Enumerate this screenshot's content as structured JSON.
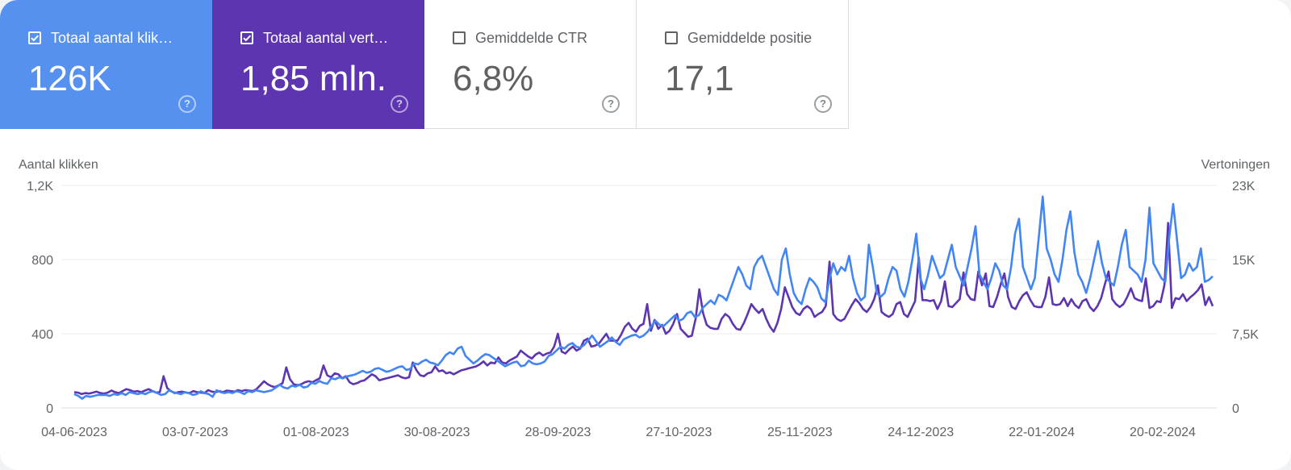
{
  "metrics": [
    {
      "label": "Totaal aantal klik…",
      "value": "126K",
      "checked": true,
      "color": "#5691f0"
    },
    {
      "label": "Totaal aantal vert…",
      "value": "1,85 mln.",
      "checked": true,
      "color": "#5e35b1"
    },
    {
      "label": "Gemiddelde CTR",
      "value": "6,8%",
      "checked": false
    },
    {
      "label": "Gemiddelde positie",
      "value": "17,1",
      "checked": false
    }
  ],
  "help_glyph": "?",
  "chart_data": {
    "type": "line",
    "ylabel_left": "Aantal klikken",
    "ylabel_right": "Vertoningen",
    "yticks_left": [
      "0",
      "400",
      "800",
      "1,2K"
    ],
    "yticks_right": [
      "0",
      "7,5K",
      "15K",
      "23K"
    ],
    "ylim_left": [
      0,
      1200
    ],
    "ylim_right": [
      0,
      22500
    ],
    "xticks": [
      "04-06-2023",
      "03-07-2023",
      "01-08-2023",
      "30-08-2023",
      "28-09-2023",
      "27-10-2023",
      "25-11-2023",
      "24-12-2023",
      "22-01-2024",
      "20-02-2024"
    ],
    "x_start": "04-06-2023",
    "x_end": "03-03-2024",
    "grid": true,
    "series": [
      {
        "axis": "left",
        "color": "#4285f4",
        "values": [
          75,
          65,
          50,
          65,
          60,
          65,
          70,
          70,
          70,
          65,
          75,
          70,
          80,
          70,
          85,
          80,
          75,
          80,
          75,
          85,
          90,
          80,
          70,
          75,
          95,
          85,
          80,
          75,
          85,
          80,
          70,
          75,
          90,
          80,
          75,
          60,
          95,
          85,
          80,
          85,
          80,
          90,
          85,
          75,
          90,
          85,
          95,
          90,
          85,
          90,
          95,
          110,
          125,
          110,
          105,
          120,
          115,
          125,
          110,
          115,
          135,
          130,
          145,
          135,
          130,
          160,
          155,
          165,
          160,
          170,
          175,
          180,
          190,
          200,
          190,
          195,
          210,
          215,
          205,
          195,
          200,
          210,
          220,
          225,
          205,
          210,
          240,
          235,
          250,
          260,
          245,
          240,
          230,
          255,
          285,
          300,
          290,
          320,
          330,
          280,
          260,
          240,
          255,
          275,
          290,
          285,
          270,
          255,
          240,
          225,
          235,
          245,
          250,
          225,
          230,
          255,
          240,
          235,
          240,
          250,
          280,
          290,
          310,
          330,
          320,
          340,
          350,
          330,
          325,
          340,
          365,
          390,
          360,
          330,
          345,
          360,
          380,
          355,
          340,
          370,
          380,
          390,
          395,
          380,
          390,
          410,
          440,
          470,
          450,
          440,
          460,
          480,
          500,
          470,
          480,
          510,
          520,
          490,
          500,
          540,
          560,
          580,
          560,
          610,
          600,
          580,
          640,
          700,
          760,
          720,
          660,
          640,
          760,
          800,
          820,
          760,
          700,
          640,
          610,
          800,
          860,
          720,
          620,
          580,
          560,
          640,
          700,
          680,
          650,
          590,
          570,
          690,
          780,
          720,
          760,
          740,
          820,
          700,
          620,
          580,
          600,
          880,
          760,
          620,
          600,
          620,
          700,
          760,
          740,
          640,
          600,
          680,
          800,
          940,
          700,
          640,
          720,
          820,
          760,
          700,
          720,
          800,
          880,
          760,
          710,
          660,
          760,
          860,
          980,
          720,
          680,
          640,
          700,
          780,
          740,
          660,
          640,
          760,
          940,
          1020,
          760,
          700,
          640,
          700,
          920,
          1140,
          860,
          800,
          720,
          680,
          800,
          960,
          1060,
          840,
          720,
          680,
          620,
          700,
          800,
          900,
          780,
          700,
          680,
          660,
          760,
          880,
          960,
          760,
          740,
          720,
          680,
          800,
          1080,
          780,
          740,
          700,
          680,
          920,
          1100,
          900,
          700,
          720,
          780,
          740,
          760,
          860,
          680,
          690,
          710
        ]
      },
      {
        "axis": "right",
        "color": "#5e35b1",
        "values": [
          1600,
          1550,
          1400,
          1500,
          1450,
          1550,
          1650,
          1500,
          1450,
          1550,
          1750,
          1600,
          1500,
          1700,
          1900,
          1800,
          1650,
          1700,
          1600,
          1750,
          1900,
          1700,
          1550,
          1600,
          3200,
          2000,
          1700,
          1500,
          1600,
          1650,
          1550,
          1500,
          1700,
          1600,
          1550,
          1500,
          1800,
          1650,
          1600,
          1700,
          1600,
          1750,
          1700,
          1650,
          1800,
          1700,
          1800,
          1750,
          1700,
          1900,
          2300,
          2700,
          2400,
          2200,
          2100,
          2300,
          2500,
          4100,
          2900,
          2400,
          2300,
          2400,
          2600,
          2700,
          2600,
          2800,
          3000,
          4300,
          3300,
          3100,
          3500,
          3400,
          3000,
          3200,
          2600,
          2400,
          2500,
          2700,
          2800,
          3100,
          3400,
          3200,
          2800,
          2900,
          3000,
          3100,
          3200,
          3300,
          3100,
          3000,
          3100,
          4600,
          3800,
          3300,
          3200,
          3500,
          3600,
          4200,
          3700,
          3800,
          3500,
          3600,
          3400,
          3600,
          3800,
          3900,
          4000,
          4100,
          4200,
          4400,
          4700,
          4300,
          4600,
          4500,
          5100,
          4600,
          4500,
          4800,
          5000,
          5200,
          5800,
          5500,
          5200,
          5000,
          5400,
          5600,
          5300,
          5500,
          5600,
          6200,
          7500,
          5700,
          5500,
          5900,
          6200,
          5800,
          6000,
          6800,
          7000,
          6200,
          6300,
          6500,
          7000,
          7500,
          6800,
          6800,
          6800,
          7400,
          8200,
          8600,
          8000,
          7700,
          8300,
          8500,
          10500,
          7800,
          8900,
          8000,
          8400,
          7500,
          7800,
          8500,
          9500,
          8000,
          7600,
          7200,
          7300,
          9000,
          12000,
          9600,
          8400,
          8100,
          8000,
          8000,
          9000,
          9500,
          9200,
          8500,
          8000,
          7900,
          8600,
          9500,
          10500,
          10000,
          9600,
          10000,
          9000,
          8200,
          7700,
          8600,
          10000,
          12200,
          11200,
          10200,
          9600,
          9400,
          10000,
          10300,
          10000,
          9200,
          9500,
          9700,
          10300,
          14800,
          9500,
          9000,
          8800,
          9000,
          9700,
          10400,
          11000,
          10600,
          10000,
          9700,
          10200,
          11000,
          12400,
          9700,
          9400,
          9200,
          9500,
          10500,
          10700,
          9500,
          9200,
          10000,
          10800,
          15200,
          10900,
          10900,
          10800,
          10900,
          10000,
          10800,
          12800,
          10300,
          10200,
          10600,
          11000,
          13700,
          11500,
          11000,
          10900,
          13800,
          12400,
          13600,
          10300,
          10200,
          11200,
          12500,
          13600,
          11200,
          10200,
          10000,
          10800,
          11400,
          11700,
          10900,
          10300,
          10200,
          10200,
          11200,
          13200,
          10500,
          10400,
          10500,
          11100,
          10300,
          11000,
          10400,
          10100,
          10800,
          11000,
          10200,
          9800,
          10300,
          11100,
          12500,
          13800,
          11000,
          10500,
          10200,
          10500,
          11200,
          12100,
          11100,
          10900,
          10800,
          13100,
          10100,
          10300,
          10800,
          10700,
          12400,
          18700,
          10100,
          11100,
          11000,
          11500,
          10800,
          11200,
          11500,
          11900,
          12500,
          10400,
          11200,
          10300
        ]
      }
    ]
  }
}
